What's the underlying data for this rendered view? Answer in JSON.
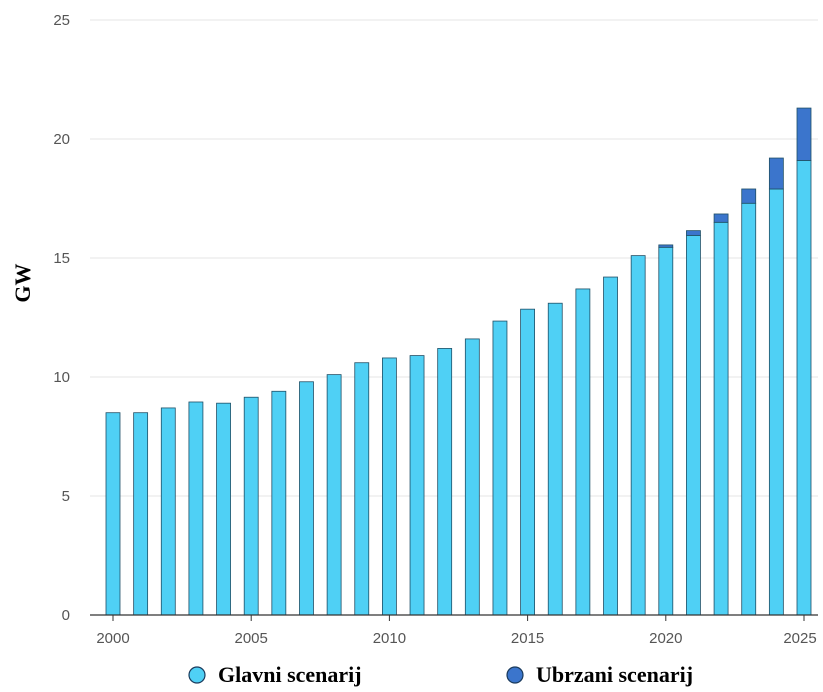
{
  "chart_data": {
    "type": "bar",
    "stacked": true,
    "ylabel": "GW",
    "xlabel": "",
    "title": "",
    "ylim": [
      0,
      25
    ],
    "yticks": [
      0,
      5,
      10,
      15,
      20,
      25
    ],
    "xticks": [
      2000,
      2005,
      2010,
      2015,
      2020,
      2025
    ],
    "grid": true,
    "legend_position": "bottom",
    "categories": [
      2000,
      2001,
      2002,
      2003,
      2004,
      2005,
      2006,
      2007,
      2008,
      2009,
      2010,
      2011,
      2012,
      2013,
      2014,
      2015,
      2016,
      2017,
      2018,
      2019,
      2020,
      2021,
      2022,
      2023,
      2024,
      2025
    ],
    "series": [
      {
        "name": "Glavni scenarij",
        "color": "#4fd0f5",
        "values": [
          8.5,
          8.5,
          8.7,
          8.95,
          8.9,
          9.15,
          9.4,
          9.8,
          10.1,
          10.6,
          10.8,
          10.9,
          11.2,
          11.6,
          12.35,
          12.85,
          13.1,
          13.7,
          14.2,
          15.1,
          15.45,
          15.95,
          16.5,
          17.3,
          17.9,
          19.1
        ]
      },
      {
        "name": "Ubrzani scenarij",
        "color": "#3b75cc",
        "values": [
          0,
          0,
          0,
          0,
          0,
          0,
          0,
          0,
          0,
          0,
          0,
          0,
          0,
          0,
          0,
          0,
          0,
          0,
          0,
          0,
          0.1,
          0.2,
          0.35,
          0.6,
          1.3,
          2.2
        ]
      }
    ]
  }
}
